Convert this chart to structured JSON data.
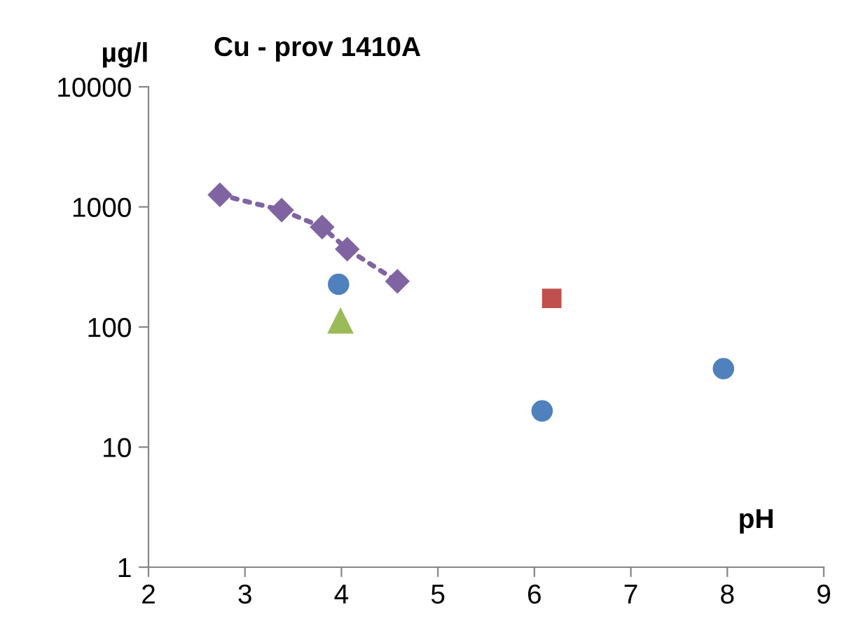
{
  "chart_data": {
    "type": "scatter",
    "title": "Cu - prov 1410A",
    "xlabel": "pH",
    "ylabel": "µg/l",
    "log": "y",
    "xlim": [
      2,
      9
    ],
    "xticks": [
      2,
      3,
      4,
      5,
      6,
      7,
      8,
      9
    ],
    "ylim": [
      1,
      10000
    ],
    "yticks": [
      1,
      10,
      100,
      1000,
      10000
    ],
    "grid": false,
    "legend": false,
    "series": [
      {
        "type": "line",
        "marker": "diamond",
        "line_style": "dotted",
        "color": "#8064a2",
        "x": [
          2.74,
          3.38,
          3.8,
          4.06,
          4.58
        ],
        "values": [
          1260,
          940,
          680,
          445,
          240
        ]
      },
      {
        "marker": "circle",
        "color": "#4f81bd",
        "x": [
          3.97,
          6.08,
          7.96
        ],
        "values": [
          227,
          20,
          45
        ]
      },
      {
        "marker": "square",
        "color": "#c0504d",
        "x": [
          6.18
        ],
        "values": [
          173
        ]
      },
      {
        "marker": "triangle",
        "color": "#9bbb59",
        "x": [
          3.99
        ],
        "values": [
          112
        ]
      }
    ]
  }
}
